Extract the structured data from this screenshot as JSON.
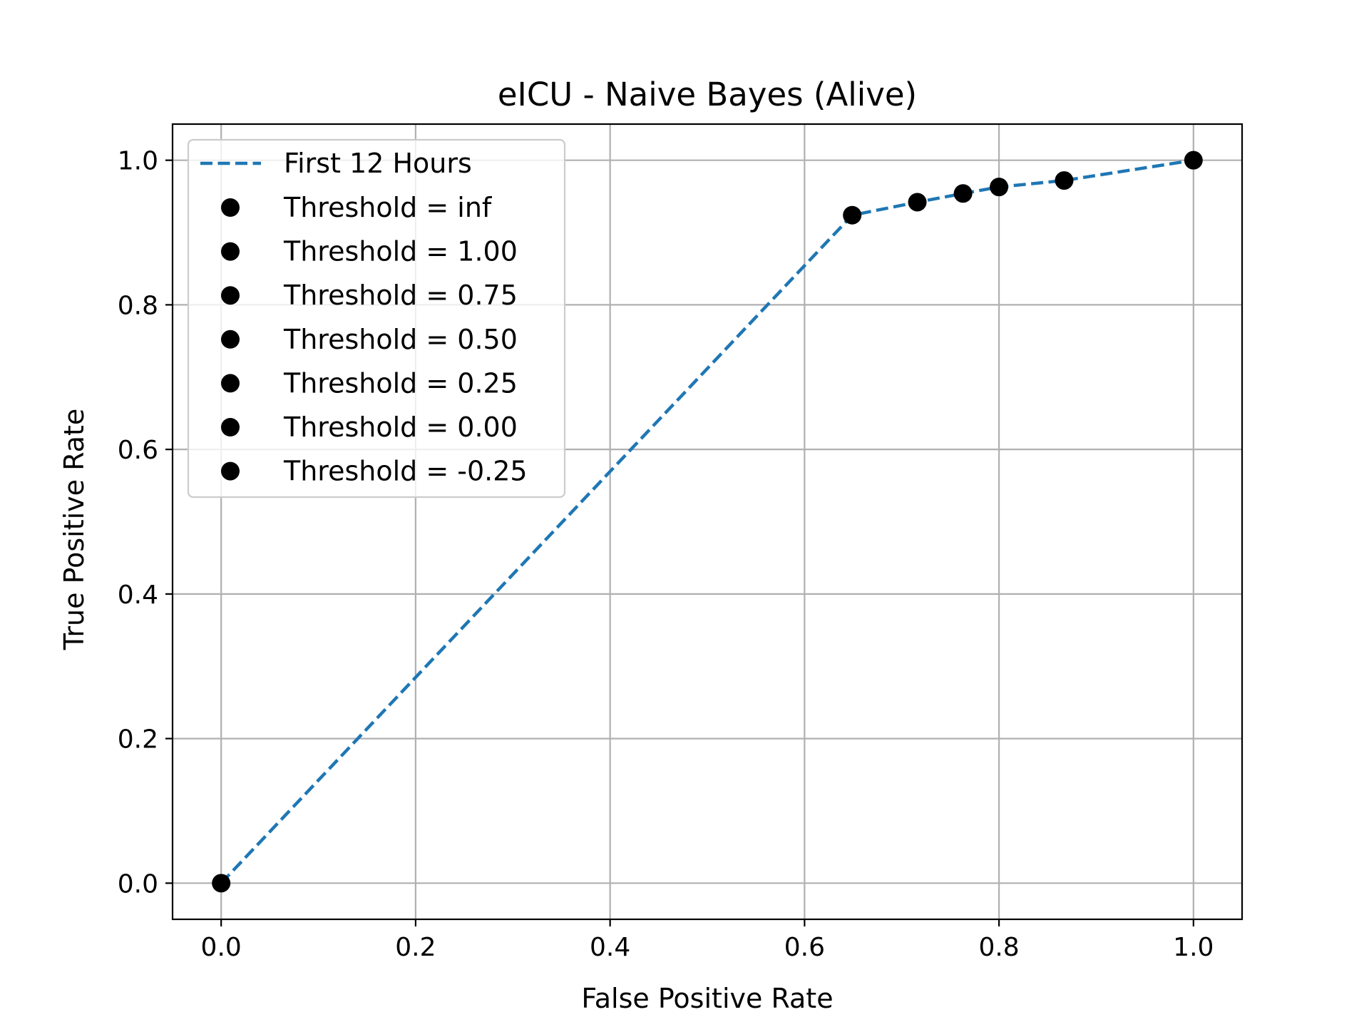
{
  "chart_data": {
    "type": "line",
    "title": "eICU - Naive Bayes (Alive)",
    "xlabel": "False Positive Rate",
    "ylabel": "True Positive Rate",
    "xlim": [
      -0.05,
      1.05
    ],
    "ylim": [
      -0.05,
      1.05
    ],
    "xticks": [
      "0.0",
      "0.2",
      "0.4",
      "0.6",
      "0.8",
      "1.0"
    ],
    "yticks": [
      "0.0",
      "0.2",
      "0.4",
      "0.6",
      "0.8",
      "1.0"
    ],
    "grid": true,
    "legend_position": "top-left",
    "series": [
      {
        "name": "First 12 Hours",
        "style": "dashed",
        "color": "#1f77b4",
        "x": [
          0.0,
          0.649,
          0.716,
          0.763,
          0.8,
          0.867,
          1.0
        ],
        "y": [
          0.0,
          0.924,
          0.942,
          0.954,
          0.963,
          0.972,
          1.0
        ]
      }
    ],
    "threshold_points": [
      {
        "label": "Threshold = inf",
        "x": 0.0,
        "y": 0.0
      },
      {
        "label": "Threshold = 1.00",
        "x": 0.649,
        "y": 0.924
      },
      {
        "label": "Threshold = 0.75",
        "x": 0.716,
        "y": 0.942
      },
      {
        "label": "Threshold = 0.50",
        "x": 0.763,
        "y": 0.954
      },
      {
        "label": "Threshold = 0.25",
        "x": 0.8,
        "y": 0.963
      },
      {
        "label": "Threshold = 0.00",
        "x": 0.867,
        "y": 0.972
      },
      {
        "label": "Threshold = -0.25",
        "x": 1.0,
        "y": 1.0
      }
    ],
    "marker_color": "#000000"
  }
}
